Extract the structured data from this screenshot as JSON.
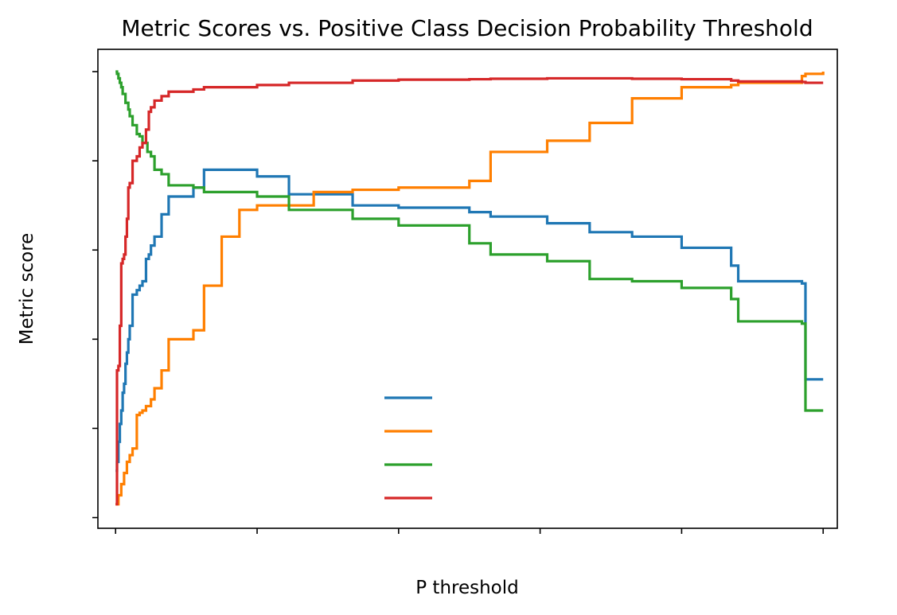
{
  "chart_data": {
    "type": "line",
    "title": "Metric Scores vs. Positive Class Decision Probability Threshold",
    "xlabel": "P threshold",
    "ylabel": "Metric score",
    "xlim": [
      -0.025,
      1.02
    ],
    "ylim": [
      -0.024,
      1.05
    ],
    "x_ticks": [
      0,
      0.2,
      0.4,
      0.6,
      0.8,
      1.0
    ],
    "y_ticks": [
      0,
      0.2,
      0.4,
      0.6,
      0.8,
      1.0
    ],
    "tick_labels_visible": false,
    "grid": false,
    "legend": {
      "placement": "lower-center",
      "labels_visible": false
    },
    "series": [
      {
        "color": "#1f77b4",
        "x": [
          0,
          0.002,
          0.004,
          0.006,
          0.008,
          0.01,
          0.012,
          0.014,
          0.016,
          0.018,
          0.02,
          0.024,
          0.03,
          0.034,
          0.038,
          0.043,
          0.047,
          0.05,
          0.055,
          0.065,
          0.075,
          0.11,
          0.125,
          0.2,
          0.245,
          0.335,
          0.4,
          0.5,
          0.53,
          0.61,
          0.67,
          0.73,
          0.8,
          0.87,
          0.88,
          0.97,
          0.975,
          1.0
        ],
        "y": [
          0.105,
          0.125,
          0.17,
          0.21,
          0.24,
          0.28,
          0.3,
          0.345,
          0.37,
          0.4,
          0.43,
          0.5,
          0.51,
          0.52,
          0.53,
          0.58,
          0.59,
          0.61,
          0.63,
          0.68,
          0.72,
          0.74,
          0.78,
          0.765,
          0.725,
          0.7,
          0.695,
          0.685,
          0.675,
          0.66,
          0.64,
          0.63,
          0.605,
          0.565,
          0.53,
          0.525,
          0.31,
          0.31
        ]
      },
      {
        "color": "#ff7f00",
        "x": [
          0,
          0.004,
          0.008,
          0.012,
          0.016,
          0.02,
          0.024,
          0.03,
          0.034,
          0.038,
          0.043,
          0.05,
          0.055,
          0.065,
          0.075,
          0.11,
          0.125,
          0.15,
          0.175,
          0.2,
          0.28,
          0.335,
          0.4,
          0.5,
          0.53,
          0.61,
          0.67,
          0.73,
          0.8,
          0.87,
          0.88,
          0.97,
          0.975,
          1.0
        ],
        "y": [
          0.03,
          0.05,
          0.075,
          0.1,
          0.125,
          0.14,
          0.155,
          0.23,
          0.235,
          0.24,
          0.25,
          0.265,
          0.29,
          0.33,
          0.4,
          0.42,
          0.52,
          0.63,
          0.69,
          0.7,
          0.73,
          0.735,
          0.74,
          0.755,
          0.82,
          0.845,
          0.885,
          0.94,
          0.965,
          0.97,
          0.975,
          0.99,
          0.995,
          1.0
        ]
      },
      {
        "color": "#2ca02c",
        "x": [
          0,
          0.002,
          0.004,
          0.006,
          0.008,
          0.01,
          0.014,
          0.018,
          0.02,
          0.024,
          0.03,
          0.034,
          0.038,
          0.045,
          0.05,
          0.055,
          0.065,
          0.075,
          0.11,
          0.125,
          0.2,
          0.245,
          0.335,
          0.4,
          0.5,
          0.53,
          0.61,
          0.67,
          0.73,
          0.8,
          0.87,
          0.88,
          0.97,
          0.975,
          1.0
        ],
        "y": [
          1.0,
          0.995,
          0.985,
          0.975,
          0.965,
          0.95,
          0.93,
          0.915,
          0.9,
          0.88,
          0.86,
          0.855,
          0.84,
          0.82,
          0.81,
          0.78,
          0.77,
          0.745,
          0.74,
          0.73,
          0.72,
          0.69,
          0.67,
          0.655,
          0.615,
          0.59,
          0.575,
          0.535,
          0.53,
          0.515,
          0.49,
          0.44,
          0.435,
          0.24,
          0.24
        ]
      },
      {
        "color": "#d62728",
        "x": [
          0,
          0.002,
          0.004,
          0.006,
          0.008,
          0.01,
          0.012,
          0.014,
          0.016,
          0.018,
          0.02,
          0.024,
          0.03,
          0.034,
          0.038,
          0.043,
          0.047,
          0.05,
          0.055,
          0.065,
          0.075,
          0.11,
          0.125,
          0.2,
          0.245,
          0.335,
          0.4,
          0.5,
          0.53,
          0.61,
          0.67,
          0.73,
          0.8,
          0.87,
          0.88,
          0.97,
          0.975,
          1.0
        ],
        "y": [
          0.03,
          0.33,
          0.34,
          0.43,
          0.57,
          0.58,
          0.59,
          0.63,
          0.67,
          0.74,
          0.75,
          0.8,
          0.81,
          0.83,
          0.84,
          0.87,
          0.91,
          0.92,
          0.935,
          0.945,
          0.955,
          0.96,
          0.965,
          0.97,
          0.975,
          0.98,
          0.982,
          0.983,
          0.984,
          0.985,
          0.985,
          0.984,
          0.983,
          0.98,
          0.978,
          0.977,
          0.975,
          0.975
        ]
      }
    ]
  }
}
